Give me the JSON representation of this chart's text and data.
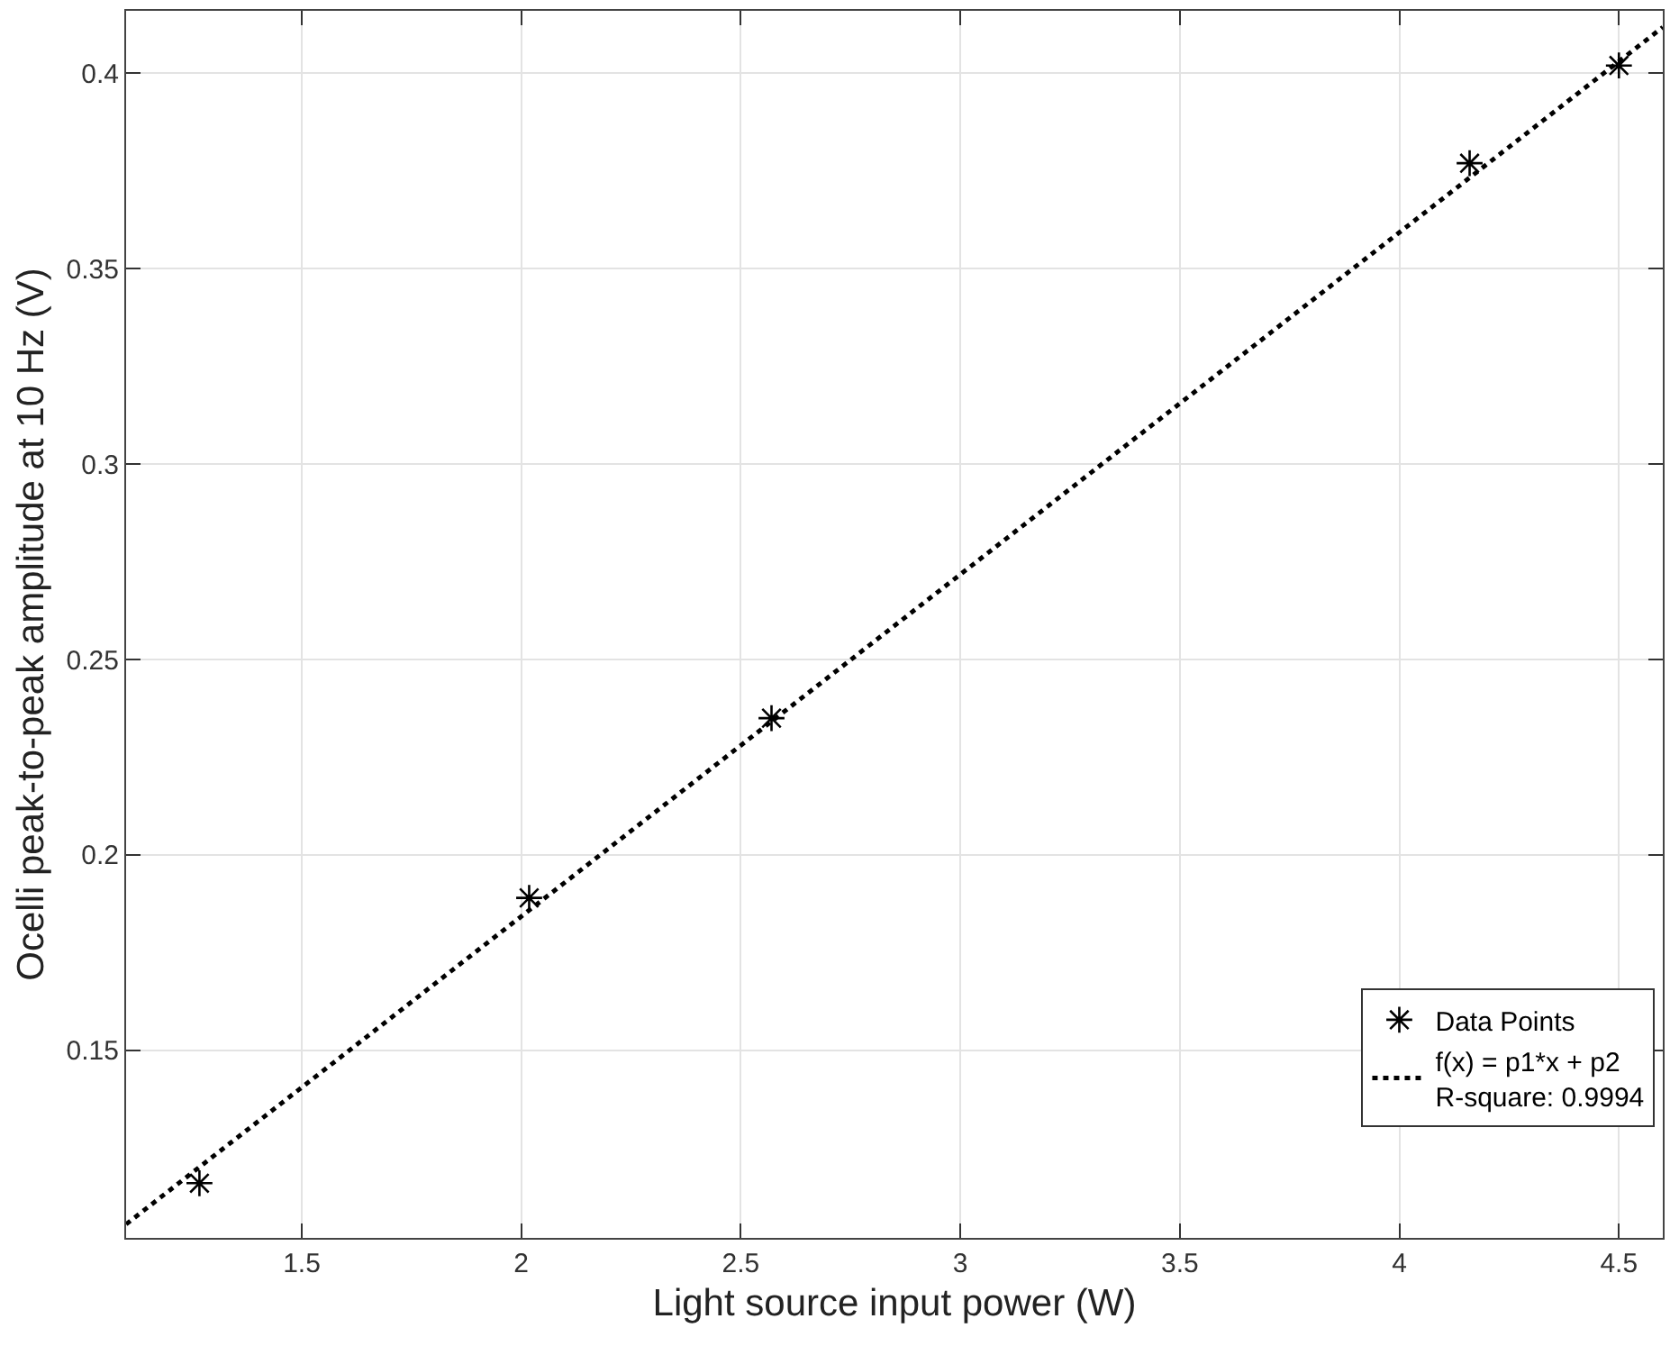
{
  "chart_data": {
    "type": "scatter",
    "xlabel": "Light source input power (W)",
    "ylabel": "Ocelli peak-to-peak amplitude at 10 Hz (V)",
    "series": [
      {
        "name": "Data Points",
        "type": "scatter",
        "marker": "cross",
        "color": "#000000",
        "x": [
          1.267,
          2.018,
          2.57,
          4.16,
          4.5
        ],
        "values": [
          0.116,
          0.189,
          0.235,
          0.377,
          0.402
        ]
      },
      {
        "name": "f(x) = p1*x + p2\nR-square: 0.9994",
        "type": "line",
        "marker": "none",
        "line_style": "dotted",
        "color": "#000000",
        "x": [
          1.1,
          4.6
        ],
        "values": [
          0.1055,
          0.4118
        ]
      }
    ],
    "xlim": [
      1.1,
      4.6
    ],
    "ylim": [
      0.102,
      0.416
    ],
    "xticks": [
      1.5,
      2,
      2.5,
      3,
      3.5,
      4,
      4.5
    ],
    "yticks": [
      0.15,
      0.2,
      0.25,
      0.3,
      0.35,
      0.4
    ],
    "grid": true,
    "legend": "bottom right"
  }
}
